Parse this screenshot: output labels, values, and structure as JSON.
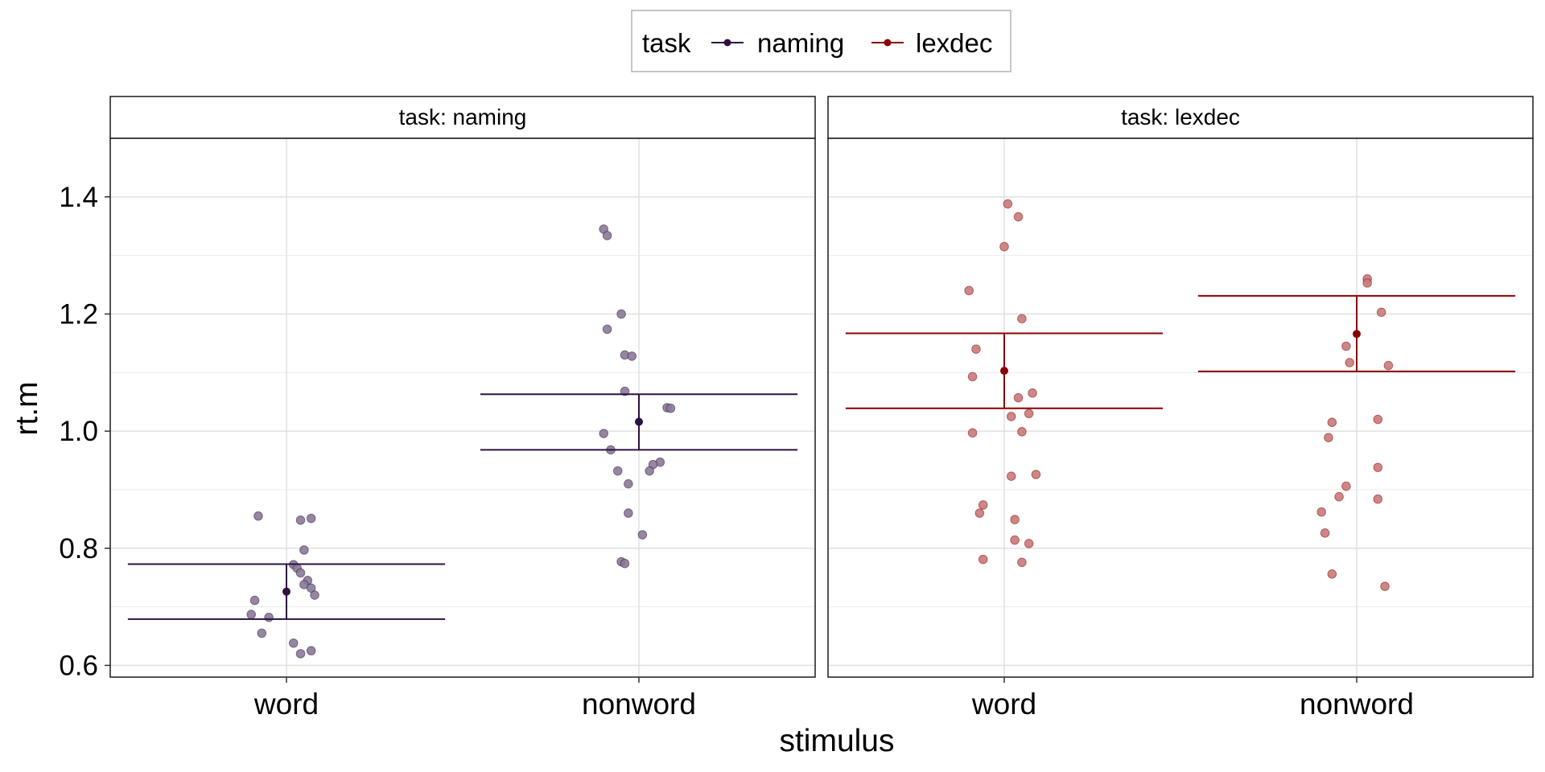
{
  "chart_data": {
    "type": "scatter",
    "xlabel": "stimulus",
    "ylabel": "rt.m",
    "ylim": [
      0.58,
      1.5
    ],
    "yticks": [
      "0.6",
      "0.8",
      "1.0",
      "1.2",
      "1.4"
    ],
    "categories": [
      "word",
      "nonword"
    ],
    "grid": true,
    "legend": {
      "title": "task",
      "position": "top",
      "entries": [
        {
          "name": "naming",
          "color": "#2d1140"
        },
        {
          "name": "lexdec",
          "color": "#8b0000"
        }
      ]
    },
    "panels": [
      {
        "strip": "task: naming",
        "task": "naming",
        "color": "#2d1140",
        "point_fill": "#8a7a97",
        "groups": [
          {
            "category": "word",
            "mean": 0.726,
            "lower": 0.679,
            "upper": 0.773,
            "points": [
              {
                "x": -0.08,
                "y": 0.855
              },
              {
                "x": 0.04,
                "y": 0.848
              },
              {
                "x": 0.07,
                "y": 0.851
              },
              {
                "x": 0.05,
                "y": 0.797
              },
              {
                "x": 0.02,
                "y": 0.772
              },
              {
                "x": 0.03,
                "y": 0.766
              },
              {
                "x": 0.04,
                "y": 0.758
              },
              {
                "x": 0.06,
                "y": 0.745
              },
              {
                "x": 0.05,
                "y": 0.738
              },
              {
                "x": 0.07,
                "y": 0.732
              },
              {
                "x": 0.08,
                "y": 0.72
              },
              {
                "x": -0.09,
                "y": 0.711
              },
              {
                "x": -0.1,
                "y": 0.687
              },
              {
                "x": -0.05,
                "y": 0.682
              },
              {
                "x": -0.07,
                "y": 0.655
              },
              {
                "x": 0.02,
                "y": 0.638
              },
              {
                "x": 0.07,
                "y": 0.625
              },
              {
                "x": 0.04,
                "y": 0.62
              }
            ]
          },
          {
            "category": "nonword",
            "mean": 1.016,
            "lower": 0.968,
            "upper": 1.063,
            "points": [
              {
                "x": -0.1,
                "y": 1.345
              },
              {
                "x": -0.09,
                "y": 1.334
              },
              {
                "x": -0.05,
                "y": 1.2
              },
              {
                "x": -0.09,
                "y": 1.174
              },
              {
                "x": -0.04,
                "y": 1.13
              },
              {
                "x": -0.02,
                "y": 1.128
              },
              {
                "x": -0.04,
                "y": 1.068
              },
              {
                "x": 0.08,
                "y": 1.04
              },
              {
                "x": 0.09,
                "y": 1.039
              },
              {
                "x": -0.1,
                "y": 0.996
              },
              {
                "x": -0.08,
                "y": 0.968
              },
              {
                "x": 0.06,
                "y": 0.947
              },
              {
                "x": 0.04,
                "y": 0.943
              },
              {
                "x": -0.06,
                "y": 0.932
              },
              {
                "x": 0.03,
                "y": 0.932
              },
              {
                "x": -0.03,
                "y": 0.91
              },
              {
                "x": -0.03,
                "y": 0.86
              },
              {
                "x": 0.01,
                "y": 0.823
              },
              {
                "x": -0.05,
                "y": 0.777
              },
              {
                "x": -0.04,
                "y": 0.774
              }
            ]
          }
        ]
      },
      {
        "strip": "task: lexdec",
        "task": "lexdec",
        "color": "#8b0000",
        "point_fill": "#c87a7a",
        "groups": [
          {
            "category": "word",
            "mean": 1.103,
            "lower": 1.039,
            "upper": 1.167,
            "points": [
              {
                "x": 0.01,
                "y": 1.388
              },
              {
                "x": 0.04,
                "y": 1.366
              },
              {
                "x": 0.0,
                "y": 1.315
              },
              {
                "x": -0.1,
                "y": 1.24
              },
              {
                "x": 0.05,
                "y": 1.192
              },
              {
                "x": -0.08,
                "y": 1.14
              },
              {
                "x": -0.09,
                "y": 1.093
              },
              {
                "x": 0.08,
                "y": 1.065
              },
              {
                "x": 0.04,
                "y": 1.057
              },
              {
                "x": 0.07,
                "y": 1.03
              },
              {
                "x": 0.02,
                "y": 1.025
              },
              {
                "x": 0.05,
                "y": 0.999
              },
              {
                "x": -0.09,
                "y": 0.997
              },
              {
                "x": 0.02,
                "y": 0.923
              },
              {
                "x": 0.09,
                "y": 0.926
              },
              {
                "x": -0.06,
                "y": 0.874
              },
              {
                "x": -0.07,
                "y": 0.86
              },
              {
                "x": 0.03,
                "y": 0.849
              },
              {
                "x": 0.03,
                "y": 0.814
              },
              {
                "x": 0.07,
                "y": 0.808
              },
              {
                "x": -0.06,
                "y": 0.781
              },
              {
                "x": 0.05,
                "y": 0.776
              }
            ]
          },
          {
            "category": "nonword",
            "mean": 1.166,
            "lower": 1.102,
            "upper": 1.231,
            "points": [
              {
                "x": 0.03,
                "y": 1.26
              },
              {
                "x": 0.03,
                "y": 1.253
              },
              {
                "x": 0.07,
                "y": 1.203
              },
              {
                "x": -0.03,
                "y": 1.145
              },
              {
                "x": 0.09,
                "y": 1.112
              },
              {
                "x": -0.02,
                "y": 1.117
              },
              {
                "x": -0.07,
                "y": 1.015
              },
              {
                "x": 0.06,
                "y": 1.02
              },
              {
                "x": -0.08,
                "y": 0.989
              },
              {
                "x": 0.06,
                "y": 0.938
              },
              {
                "x": -0.03,
                "y": 0.906
              },
              {
                "x": -0.05,
                "y": 0.888
              },
              {
                "x": 0.06,
                "y": 0.884
              },
              {
                "x": -0.1,
                "y": 0.862
              },
              {
                "x": -0.09,
                "y": 0.826
              },
              {
                "x": -0.07,
                "y": 0.756
              },
              {
                "x": 0.08,
                "y": 0.735
              }
            ]
          }
        ]
      }
    ]
  }
}
